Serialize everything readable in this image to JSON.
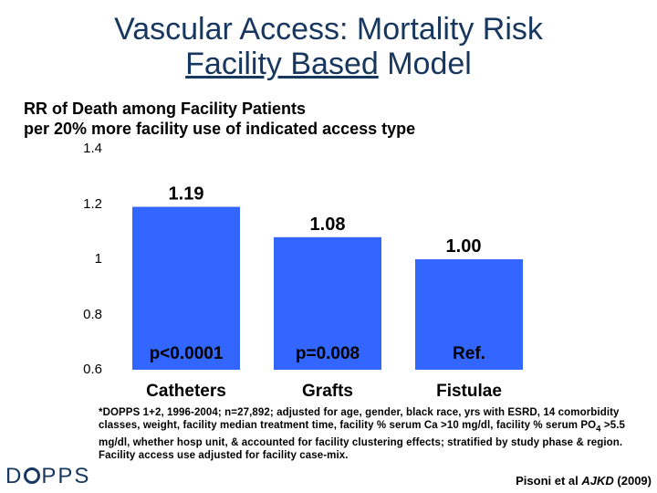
{
  "title": {
    "line1": "Vascular Access: Mortality Risk",
    "line2_underlined": "Facility Based",
    "line2_rest": " Model"
  },
  "subtitle": {
    "line1": "RR of Death among Facility Patients",
    "line2": "per 20% more facility use of indicated access type"
  },
  "chart_data": {
    "type": "bar",
    "title": "RR of Death among Facility Patients per 20% more facility use of indicated access type",
    "categories": [
      "Catheters",
      "Grafts",
      "Fistulae"
    ],
    "values": [
      1.19,
      1.08,
      1.0
    ],
    "value_labels": [
      "1.19",
      "1.08",
      "1.00"
    ],
    "p_values": [
      "p<0.0001",
      "p=0.008",
      "Ref."
    ],
    "ylim": [
      0.6,
      1.4
    ],
    "yticks": [
      {
        "value": 1.4,
        "label": "1.4"
      },
      {
        "value": 1.2,
        "label": "1.2"
      },
      {
        "value": 1.0,
        "label": "1"
      },
      {
        "value": 0.8,
        "label": "0.8"
      },
      {
        "value": 0.6,
        "label": "0.6"
      }
    ],
    "bar_color": "#3366ff",
    "xlabel": "",
    "ylabel": ""
  },
  "footnote": "*DOPPS 1+2, 1996-2004; n=27,892; adjusted for age, gender, black race, yrs with ESRD, 14 comorbidity classes, weight, facility median treatment time, facility % serum Ca >10 mg/dl, facility % serum PO4 >5.5 mg/dl, whether hosp unit, & accounted for facility clustering effects; stratified by study phase & region. Facility access use adjusted for facility case-mix.",
  "citation": {
    "authors": "Pisoni et al ",
    "journal": "AJKD",
    "year": " (2009)"
  },
  "logo": {
    "prefix": "D",
    "suffix": "PPS"
  },
  "colors": {
    "title": "#17375e",
    "bars": "#3366ff"
  }
}
